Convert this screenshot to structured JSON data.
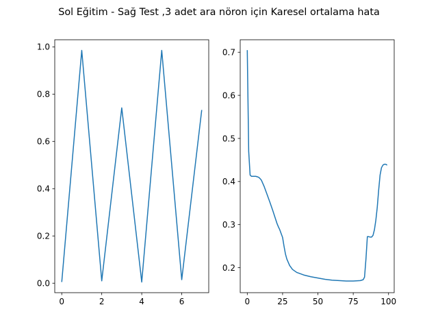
{
  "figure": {
    "title": "Sol Eğitim - Sağ Test ,3 adet ara nöron için Karesel ortalama hata"
  },
  "colors": {
    "line": "#1f77b4",
    "axes": "#000000",
    "background": "#ffffff"
  },
  "chart_data": [
    {
      "type": "line",
      "panel": "left",
      "xlim": [
        -0.35,
        7.35
      ],
      "ylim": [
        -0.04,
        1.03
      ],
      "xticks": [
        0,
        2,
        4,
        6
      ],
      "xtick_labels": [
        "0",
        "2",
        "4",
        "6"
      ],
      "yticks": [
        0.0,
        0.2,
        0.4,
        0.6,
        0.8,
        1.0
      ],
      "ytick_labels": [
        "0.0",
        "0.2",
        "0.4",
        "0.6",
        "0.8",
        "1.0"
      ],
      "grid": false,
      "series": [
        {
          "x": [
            0,
            1,
            2,
            3,
            4,
            5,
            6,
            7
          ],
          "y": [
            0.005,
            0.985,
            0.01,
            0.742,
            0.005,
            0.985,
            0.015,
            0.733
          ]
        }
      ]
    },
    {
      "type": "line",
      "panel": "right",
      "xlim": [
        -5,
        104
      ],
      "ylim": [
        0.142,
        0.729
      ],
      "xticks": [
        0,
        25,
        50,
        75,
        100
      ],
      "xtick_labels": [
        "0",
        "25",
        "50",
        "75",
        "100"
      ],
      "yticks": [
        0.2,
        0.3,
        0.4,
        0.5,
        0.6,
        0.7
      ],
      "ytick_labels": [
        "0.2",
        "0.3",
        "0.4",
        "0.5",
        "0.6",
        "0.7"
      ],
      "grid": false,
      "series": [
        {
          "x": [
            0,
            1,
            2,
            3,
            4,
            5,
            6,
            7,
            8,
            9,
            10,
            12,
            14,
            16,
            18,
            20,
            21,
            22,
            23,
            24,
            25,
            26,
            27,
            28,
            30,
            32,
            35,
            40,
            45,
            50,
            55,
            60,
            65,
            70,
            75,
            80,
            82,
            83,
            84,
            85,
            86,
            87,
            88,
            89,
            90,
            91,
            92,
            93,
            94,
            95,
            96,
            97,
            98,
            99
          ],
          "y": [
            0.705,
            0.47,
            0.415,
            0.412,
            0.412,
            0.412,
            0.412,
            0.411,
            0.41,
            0.407,
            0.403,
            0.388,
            0.37,
            0.352,
            0.333,
            0.313,
            0.303,
            0.295,
            0.288,
            0.279,
            0.27,
            0.25,
            0.232,
            0.22,
            0.205,
            0.196,
            0.189,
            0.183,
            0.179,
            0.176,
            0.173,
            0.171,
            0.17,
            0.169,
            0.169,
            0.17,
            0.172,
            0.178,
            0.22,
            0.272,
            0.272,
            0.271,
            0.271,
            0.275,
            0.288,
            0.31,
            0.34,
            0.38,
            0.415,
            0.432,
            0.438,
            0.44,
            0.44,
            0.438
          ]
        }
      ]
    }
  ]
}
